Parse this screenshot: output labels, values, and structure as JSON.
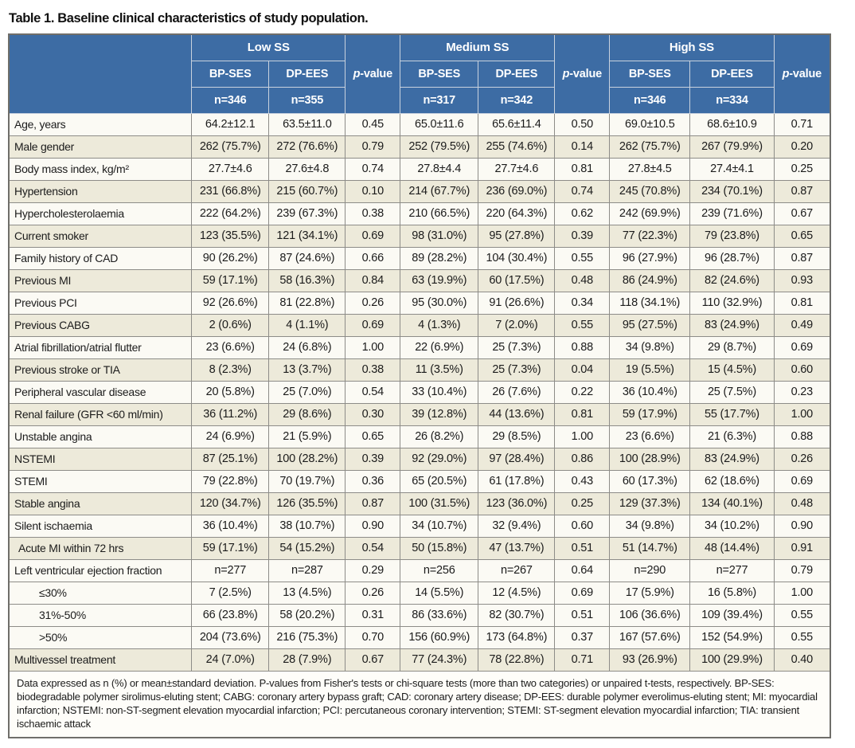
{
  "title": "Table 1. Baseline clinical characteristics of study population.",
  "colors": {
    "header_blue": "#3d6ca4",
    "row_shaded": "#edeada",
    "row_plain": "#fbfaf4",
    "grid_line": "#8d8c88",
    "header_grid_line": "#c9d2de",
    "outer_border": "#6f6e6a"
  },
  "table": {
    "pvalue": {
      "italic": "p",
      "rest": "-value"
    },
    "groups": [
      {
        "label": "Low SS",
        "cols": [
          {
            "stent": "BP-SES",
            "n": "n=346"
          },
          {
            "stent": "DP-EES",
            "n": "n=355"
          }
        ]
      },
      {
        "label": "Medium SS",
        "cols": [
          {
            "stent": "BP-SES",
            "n": "n=317"
          },
          {
            "stent": "DP-EES",
            "n": "n=342"
          }
        ]
      },
      {
        "label": "High SS",
        "cols": [
          {
            "stent": "BP-SES",
            "n": "n=346"
          },
          {
            "stent": "DP-EES",
            "n": "n=334"
          }
        ]
      }
    ],
    "rows": [
      {
        "label": "Age, years",
        "indent": 0,
        "shaded": false,
        "values": [
          "64.2±12.1",
          "63.5±11.0",
          "0.45",
          "65.0±11.6",
          "65.6±11.4",
          "0.50",
          "69.0±10.5",
          "68.6±10.9",
          "0.71"
        ]
      },
      {
        "label": "Male gender",
        "indent": 0,
        "shaded": true,
        "values": [
          "262 (75.7%)",
          "272 (76.6%)",
          "0.79",
          "252 (79.5%)",
          "255 (74.6%)",
          "0.14",
          "262 (75.7%)",
          "267 (79.9%)",
          "0.20"
        ]
      },
      {
        "label": "Body mass index, kg/m²",
        "indent": 0,
        "shaded": false,
        "values": [
          "27.7±4.6",
          "27.6±4.8",
          "0.74",
          "27.8±4.4",
          "27.7±4.6",
          "0.81",
          "27.8±4.5",
          "27.4±4.1",
          "0.25"
        ]
      },
      {
        "label": "Hypertension",
        "indent": 0,
        "shaded": true,
        "values": [
          "231 (66.8%)",
          "215 (60.7%)",
          "0.10",
          "214 (67.7%)",
          "236 (69.0%)",
          "0.74",
          "245 (70.8%)",
          "234 (70.1%)",
          "0.87"
        ]
      },
      {
        "label": "Hypercholesterolaemia",
        "indent": 0,
        "shaded": false,
        "values": [
          "222 (64.2%)",
          "239 (67.3%)",
          "0.38",
          "210 (66.5%)",
          "220 (64.3%)",
          "0.62",
          "242 (69.9%)",
          "239 (71.6%)",
          "0.67"
        ]
      },
      {
        "label": "Current smoker",
        "indent": 0,
        "shaded": true,
        "values": [
          "123 (35.5%)",
          "121 (34.1%)",
          "0.69",
          "98 (31.0%)",
          "95 (27.8%)",
          "0.39",
          "77 (22.3%)",
          "79 (23.8%)",
          "0.65"
        ]
      },
      {
        "label": "Family history of CAD",
        "indent": 0,
        "shaded": false,
        "values": [
          "90 (26.2%)",
          "87 (24.6%)",
          "0.66",
          "89 (28.2%)",
          "104 (30.4%)",
          "0.55",
          "96 (27.9%)",
          "96 (28.7%)",
          "0.87"
        ]
      },
      {
        "label": "Previous MI",
        "indent": 0,
        "shaded": true,
        "values": [
          "59 (17.1%)",
          "58 (16.3%)",
          "0.84",
          "63 (19.9%)",
          "60 (17.5%)",
          "0.48",
          "86 (24.9%)",
          "82 (24.6%)",
          "0.93"
        ]
      },
      {
        "label": "Previous PCI",
        "indent": 0,
        "shaded": false,
        "values": [
          "92 (26.6%)",
          "81 (22.8%)",
          "0.26",
          "95 (30.0%)",
          "91 (26.6%)",
          "0.34",
          "118 (34.1%)",
          "110 (32.9%)",
          "0.81"
        ]
      },
      {
        "label": "Previous CABG",
        "indent": 0,
        "shaded": true,
        "values": [
          "2 (0.6%)",
          "4 (1.1%)",
          "0.69",
          "4 (1.3%)",
          "7 (2.0%)",
          "0.55",
          "95 (27.5%)",
          "83 (24.9%)",
          "0.49"
        ]
      },
      {
        "label": "Atrial fibrillation/atrial flutter",
        "indent": 0,
        "shaded": false,
        "values": [
          "23 (6.6%)",
          "24 (6.8%)",
          "1.00",
          "22 (6.9%)",
          "25 (7.3%)",
          "0.88",
          "34 (9.8%)",
          "29 (8.7%)",
          "0.69"
        ]
      },
      {
        "label": "Previous stroke or TIA",
        "indent": 0,
        "shaded": true,
        "values": [
          "8 (2.3%)",
          "13 (3.7%)",
          "0.38",
          "11 (3.5%)",
          "25 (7.3%)",
          "0.04",
          "19 (5.5%)",
          "15 (4.5%)",
          "0.60"
        ]
      },
      {
        "label": "Peripheral vascular disease",
        "indent": 0,
        "shaded": false,
        "values": [
          "20 (5.8%)",
          "25 (7.0%)",
          "0.54",
          "33 (10.4%)",
          "26 (7.6%)",
          "0.22",
          "36 (10.4%)",
          "25 (7.5%)",
          "0.23"
        ]
      },
      {
        "label": "Renal failure (GFR <60 ml/min)",
        "indent": 0,
        "shaded": true,
        "values": [
          "36 (11.2%)",
          "29 (8.6%)",
          "0.30",
          "39 (12.8%)",
          "44 (13.6%)",
          "0.81",
          "59 (17.9%)",
          "55 (17.7%)",
          "1.00"
        ]
      },
      {
        "label": "Unstable angina",
        "indent": 0,
        "shaded": false,
        "values": [
          "24 (6.9%)",
          "21 (5.9%)",
          "0.65",
          "26 (8.2%)",
          "29 (8.5%)",
          "1.00",
          "23 (6.6%)",
          "21 (6.3%)",
          "0.88"
        ]
      },
      {
        "label": "NSTEMI",
        "indent": 0,
        "shaded": true,
        "values": [
          "87 (25.1%)",
          "100 (28.2%)",
          "0.39",
          "92 (29.0%)",
          "97 (28.4%)",
          "0.86",
          "100 (28.9%)",
          "83 (24.9%)",
          "0.26"
        ]
      },
      {
        "label": "STEMI",
        "indent": 0,
        "shaded": false,
        "values": [
          "79 (22.8%)",
          "70 (19.7%)",
          "0.36",
          "65 (20.5%)",
          "61 (17.8%)",
          "0.43",
          "60 (17.3%)",
          "62 (18.6%)",
          "0.69"
        ]
      },
      {
        "label": "Stable angina",
        "indent": 0,
        "shaded": true,
        "values": [
          "120 (34.7%)",
          "126 (35.5%)",
          "0.87",
          "100 (31.5%)",
          "123 (36.0%)",
          "0.25",
          "129 (37.3%)",
          "134 (40.1%)",
          "0.48"
        ]
      },
      {
        "label": "Silent ischaemia",
        "indent": 0,
        "shaded": false,
        "values": [
          "36 (10.4%)",
          "38 (10.7%)",
          "0.90",
          "34 (10.7%)",
          "32 (9.4%)",
          "0.60",
          "34 (9.8%)",
          "34 (10.2%)",
          "0.90"
        ]
      },
      {
        "label": "Acute MI within 72 hrs",
        "indent": 1,
        "shaded": true,
        "values": [
          "59 (17.1%)",
          "54 (15.2%)",
          "0.54",
          "50 (15.8%)",
          "47 (13.7%)",
          "0.51",
          "51 (14.7%)",
          "48 (14.4%)",
          "0.91"
        ]
      },
      {
        "label": "Left ventricular ejection fraction",
        "indent": 0,
        "shaded": false,
        "values": [
          "n=277",
          "n=287",
          "0.29",
          "n=256",
          "n=267",
          "0.64",
          "n=290",
          "n=277",
          "0.79"
        ]
      },
      {
        "label": "≤30%",
        "indent": 2,
        "shaded": false,
        "values": [
          "7 (2.5%)",
          "13 (4.5%)",
          "0.26",
          "14 (5.5%)",
          "12 (4.5%)",
          "0.69",
          "17 (5.9%)",
          "16 (5.8%)",
          "1.00"
        ]
      },
      {
        "label": "31%-50%",
        "indent": 2,
        "shaded": false,
        "values": [
          "66 (23.8%)",
          "58 (20.2%)",
          "0.31",
          "86 (33.6%)",
          "82 (30.7%)",
          "0.51",
          "106 (36.6%)",
          "109 (39.4%)",
          "0.55"
        ]
      },
      {
        "label": ">50%",
        "indent": 2,
        "shaded": false,
        "values": [
          "204 (73.6%)",
          "216 (75.3%)",
          "0.70",
          "156 (60.9%)",
          "173 (64.8%)",
          "0.37",
          "167 (57.6%)",
          "152 (54.9%)",
          "0.55"
        ]
      },
      {
        "label": "Multivessel treatment",
        "indent": 0,
        "shaded": true,
        "values": [
          "24 (7.0%)",
          "28 (7.9%)",
          "0.67",
          "77 (24.3%)",
          "78 (22.8%)",
          "0.71",
          "93 (26.9%)",
          "100 (29.9%)",
          "0.40"
        ]
      }
    ],
    "footnote": "Data expressed as n (%) or mean±standard deviation. P-values from Fisher's tests or chi-square tests (more than two categories) or unpaired t-tests, respectively. BP-SES: biodegradable polymer sirolimus-eluting stent; CABG: coronary artery bypass graft; CAD: coronary artery disease; DP-EES: durable polymer everolimus-eluting stent; MI: myocardial infarction; NSTEMI: non-ST-segment elevation myocardial infarction; PCI: percutaneous coronary intervention; STEMI: ST-segment elevation myocardial infarction; TIA: transient ischaemic attack"
  }
}
